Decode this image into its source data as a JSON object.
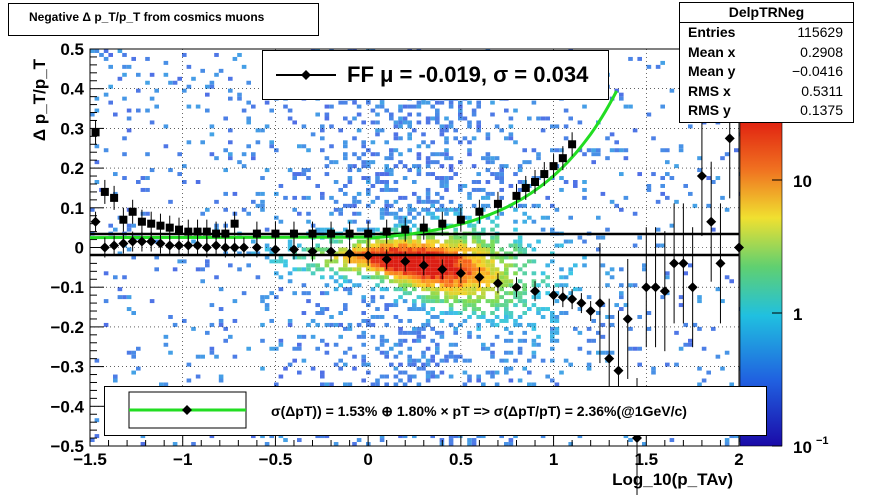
{
  "title": "Negative Δ p_T/p_T from cosmics muons",
  "stats": {
    "name": "DelpTRNeg",
    "rows": [
      {
        "label": "Entries",
        "value": "115629"
      },
      {
        "label": "Mean x",
        "value": "0.2908"
      },
      {
        "label": "Mean y",
        "value": "−0.0416"
      },
      {
        "label": "RMS x",
        "value": "0.5311"
      },
      {
        "label": "RMS y",
        "value": "0.1375"
      }
    ]
  },
  "legend_ff": "FF μ = -0.019, σ =   0.034",
  "legend_res": "σ(ΔpT)) =  1.53% ⊕  1.80% × pT => σ(ΔpT/pT) =  2.36%(@1GeV/c)",
  "ylabel": "Δ p_T/p_T",
  "xlabel": "Log_10(p_TAv)",
  "colors": {
    "fit_line": "#22dd22",
    "markers": "#000000",
    "band_lines": "#000000"
  },
  "chart_data": {
    "type": "heatmap",
    "xlim": [
      -1.5,
      2
    ],
    "ylim": [
      -0.5,
      0.5
    ],
    "x_ticks": [
      "−1.5",
      "−1",
      "−0.5",
      "0",
      "0.5",
      "1",
      "1.5",
      "2"
    ],
    "y_ticks": [
      "0.5",
      "0.4",
      "0.3",
      "0.2",
      "0.1",
      "0",
      "−0.1",
      "−0.2",
      "−0.3",
      "−0.4",
      "−0.5"
    ],
    "z_scale": "log",
    "z_ticks": [
      "10",
      "1",
      "10^-1"
    ],
    "grid": true,
    "band_lines_y": [
      0.034,
      -0.019
    ],
    "mean_points": {
      "x": [
        -1.47,
        -1.42,
        -1.37,
        -1.32,
        -1.27,
        -1.22,
        -1.17,
        -1.12,
        -1.07,
        -1.02,
        -0.97,
        -0.92,
        -0.87,
        -0.82,
        -0.77,
        -0.72,
        -0.67,
        -0.6,
        -0.5,
        -0.4,
        -0.3,
        -0.2,
        -0.1,
        0,
        0.1,
        0.2,
        0.3,
        0.4,
        0.5,
        0.6,
        0.7,
        0.8,
        0.9,
        1.0,
        1.05,
        1.1,
        1.15,
        1.2,
        1.25,
        1.3,
        1.35,
        1.4,
        1.45,
        1.5,
        1.55,
        1.6,
        1.65,
        1.7,
        1.75,
        1.8,
        1.85,
        1.9,
        1.95,
        2.0
      ],
      "y": [
        0.065,
        0.0,
        0.005,
        0.01,
        0.015,
        0.015,
        0.015,
        0.01,
        0.005,
        0.005,
        0.005,
        0.005,
        0.0,
        0.005,
        0.0,
        0.0,
        0.0,
        0.0,
        -0.005,
        -0.005,
        -0.01,
        -0.01,
        -0.015,
        -0.02,
        -0.03,
        -0.035,
        -0.045,
        -0.055,
        -0.065,
        -0.075,
        -0.09,
        -0.1,
        -0.11,
        -0.12,
        -0.125,
        -0.13,
        -0.14,
        -0.16,
        -0.14,
        -0.28,
        -0.31,
        -0.18,
        -0.48,
        -0.1,
        -0.1,
        -0.11,
        -0.04,
        -0.04,
        -0.1,
        0.18,
        0.065,
        -0.04,
        0.275,
        0.0
      ]
    },
    "sigma_points": {
      "x": [
        -1.47,
        -1.42,
        -1.37,
        -1.32,
        -1.27,
        -1.22,
        -1.17,
        -1.12,
        -1.07,
        -1.02,
        -0.97,
        -0.92,
        -0.87,
        -0.82,
        -0.77,
        -0.72,
        -0.6,
        -0.5,
        -0.4,
        -0.3,
        -0.2,
        -0.1,
        0,
        0.1,
        0.2,
        0.3,
        0.4,
        0.5,
        0.6,
        0.7,
        0.8,
        0.85,
        0.9,
        0.95,
        1.0,
        1.05,
        1.1
      ],
      "y": [
        0.29,
        0.14,
        0.125,
        0.07,
        0.09,
        0.065,
        0.06,
        0.055,
        0.05,
        0.045,
        0.04,
        0.04,
        0.04,
        0.035,
        0.035,
        0.06,
        0.035,
        0.035,
        0.035,
        0.035,
        0.035,
        0.035,
        0.035,
        0.04,
        0.045,
        0.05,
        0.06,
        0.07,
        0.09,
        0.11,
        0.13,
        0.15,
        0.165,
        0.185,
        0.205,
        0.225,
        0.26
      ]
    },
    "fit_curve": {
      "sigma_at_1GeV_percent": 2.36,
      "const_percent": 1.53,
      "linear_percent": 1.8
    }
  }
}
